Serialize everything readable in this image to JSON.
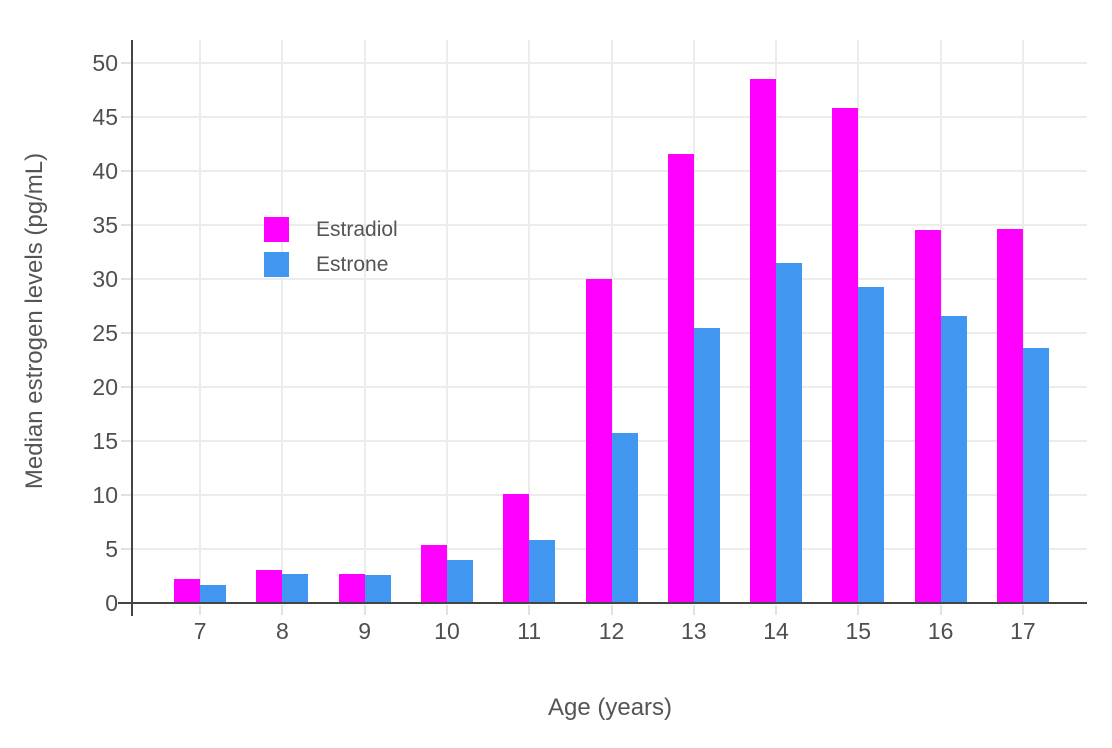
{
  "chart_data": {
    "type": "bar",
    "title": "",
    "xlabel": "Age (years)",
    "ylabel": "Median estrogen levels (pg/mL)",
    "categories": [
      "7",
      "8",
      "9",
      "10",
      "11",
      "12",
      "13",
      "14",
      "15",
      "16",
      "17"
    ],
    "series": [
      {
        "name": "Estradiol",
        "color": "#FF00FF",
        "values": [
          2.2,
          3.1,
          2.7,
          5.4,
          10.1,
          30.0,
          41.6,
          48.5,
          45.8,
          34.5,
          34.6
        ]
      },
      {
        "name": "Estrone",
        "color": "#4196F0",
        "values": [
          1.7,
          2.7,
          2.6,
          4.0,
          5.8,
          15.7,
          25.5,
          31.5,
          29.3,
          26.6,
          23.6
        ]
      }
    ],
    "ylim": [
      0,
      50
    ],
    "ytick_step": 5,
    "ytick_labels": [
      "0",
      "5",
      "10",
      "15",
      "20",
      "25",
      "30",
      "35",
      "40",
      "45",
      "50"
    ],
    "grid": true,
    "legend_position": "inside-upper-left"
  },
  "colors": {
    "estradiol": "#FF00FF",
    "estrone": "#4196F0",
    "axis_line": "#444444",
    "grid_line": "#ECECEC",
    "tick_mark": "#E2E2E2",
    "tick_text": "#4F4F4F",
    "title_text": "#555555",
    "background": "#FFFFFF"
  }
}
